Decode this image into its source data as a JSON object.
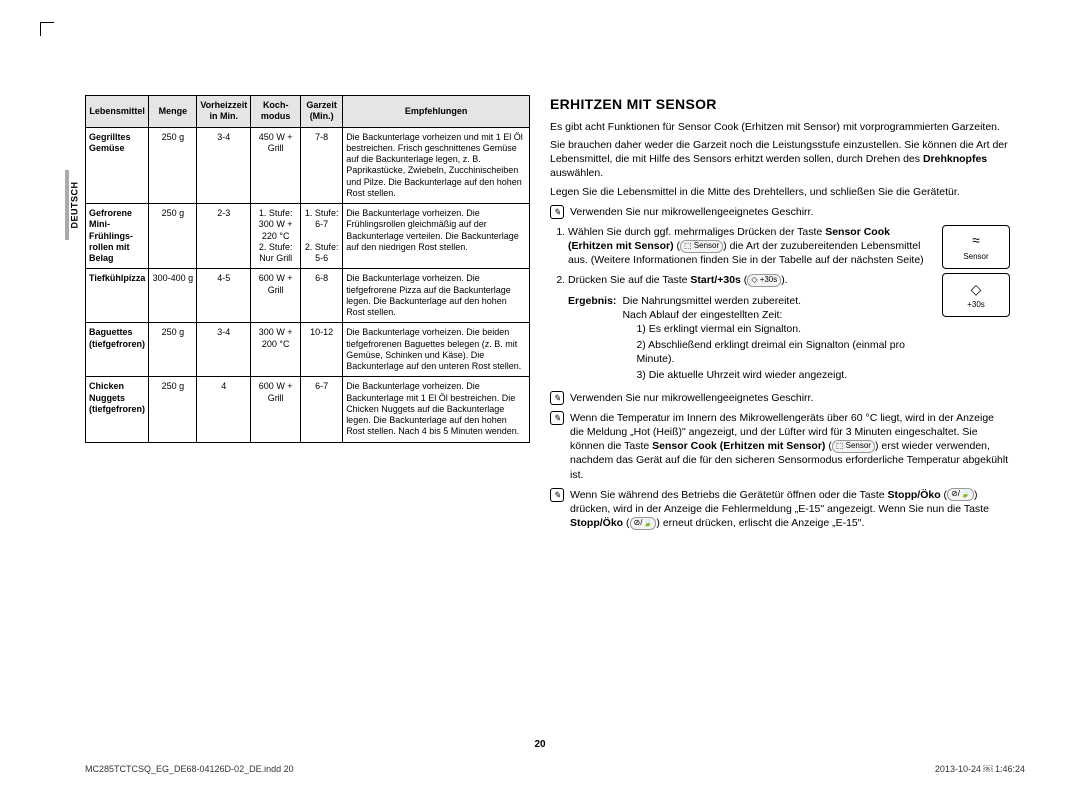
{
  "sideTab": "DEUTSCH",
  "table": {
    "headers": [
      "Lebens­mittel",
      "Menge",
      "Vorheizzeit in Min.",
      "Koch­modus",
      "Garzeit (Min.)",
      "Empfehlungen"
    ],
    "rows": [
      {
        "food": "Gegrilltes Gemüse",
        "qty": "250 g",
        "preheat": "3-4",
        "mode": "450 W + Grill",
        "time": "7-8",
        "rec": "Die Backunterlage vorheizen und mit 1 El Öl bestreichen. Frisch geschnittenes Gemüse auf die Backunterlage legen, z. B. Paprikastücke, Zwiebeln, Zucchinischeiben und Pilze. Die Backunterlage auf den hohen Rost stellen."
      },
      {
        "food": "Gefrorene Mini-Frühlings­rollen mit Belag",
        "qty": "250 g",
        "preheat": "2-3",
        "mode": "1. Stufe: 300 W + 220 °C\n2. Stufe: Nur Grill",
        "time": "1. Stufe: 6-7\n\n2. Stufe: 5-6",
        "rec": "Die Backunterlage vorheizen. Die Frühlingsrollen gleichmäßig auf der Backunterlage verteilen. Die Backunterlage auf den niedrigen Rost stellen."
      },
      {
        "food": "Tiefkühlpizza",
        "qty": "300-400 g",
        "preheat": "4-5",
        "mode": "600 W + Grill",
        "time": "6-8",
        "rec": "Die Backunterlage vorheizen. Die tiefgefrorene Pizza auf die Backunterlage legen. Die Backunterlage auf den hohen Rost stellen."
      },
      {
        "food": "Baguettes (tiefgefroren)",
        "qty": "250 g",
        "preheat": "3-4",
        "mode": "300 W + 200 °C",
        "time": "10-12",
        "rec": "Die Backunterlage vorheizen. Die beiden tiefgefrorenen Baguettes belegen (z. B. mit Gemüse, Schinken und Käse). Die Backunterlage auf den unteren Rost stellen."
      },
      {
        "food": "Chicken Nuggets (tiefgefroren)",
        "qty": "250 g",
        "preheat": "4",
        "mode": "600 W + Grill",
        "time": "6-7",
        "rec": "Die Backunterlage vorheizen. Die Backunterlage mit 1 El Öl bestreichen. Die Chicken Nuggets auf die Backunterlage legen. Die Backunterlage auf den hohen Rost stellen. Nach 4 bis 5 Minuten wenden."
      }
    ]
  },
  "right": {
    "heading": "ERHITZEN MIT SENSOR",
    "intro": [
      "Es gibt acht Funktionen für Sensor Cook (Erhitzen mit Sensor) mit vorprogrammierten Garzeiten.",
      "Sie brauchen daher weder die Garzeit noch die Leistungsstufe einzustellen. Sie können die Art der Lebensmittel, die mit Hilfe des Sensors erhitzt werden sollen, durch Drehen des <b>Drehknopfes</b> auswählen.",
      "Legen Sie die Lebensmittel in die Mitte des Drehtellers, und schließen Sie die Gerätetür."
    ],
    "noteA": "Verwenden Sie nur mikrowellengeeignetes Geschirr.",
    "steps": [
      {
        "text": "Wählen Sie durch ggf. mehrmaliges Drücken der Taste <b>Sensor Cook (Erhitzen mit Sensor)</b> (<span class='inline-sym'>⬚ Sensor</span>) die Art der zuzubereitenden Lebensmittel aus. (Weitere Informationen finden Sie in der Tabelle auf der nächsten Seite)",
        "icon": {
          "sym": "≈",
          "label": "Sensor"
        }
      },
      {
        "text": "Drücken Sie auf die Taste <b>Start/+30s</b> (<span class='inline-sym'>◇ +30s</span>).",
        "icon": {
          "sym": "◇",
          "label": "+30s"
        }
      }
    ],
    "result": {
      "label": "Ergebnis:",
      "lines": [
        "Die Nahrungsmittel werden zubereitet.",
        "Nach Ablauf der eingestellten Zeit:"
      ],
      "sub": [
        "1)  Es erklingt viermal ein Signalton.",
        "2)  Abschließend erklingt dreimal ein Signalton (einmal pro Minute).",
        "3)  Die aktuelle Uhrzeit wird wieder angezeigt."
      ]
    },
    "noteB": "Verwenden Sie nur mikrowellengeeignetes Geschirr.",
    "noteC": "Wenn die Temperatur im Innern des Mikrowellengeräts über 60 °C liegt, wird in der Anzeige die Meldung „Hot (Heiß)\" angezeigt, und der Lüfter wird für 3 Minuten eingeschaltet. Sie können die Taste <b>Sensor Cook (Erhitzen mit Sensor)</b> (<span class='inline-sym'>⬚ Sensor</span>) erst wieder verwenden, nachdem das Gerät auf die für den sicheren Sensormodus erforderliche Temperatur abgekühlt ist.",
    "noteD": "Wenn Sie während des Betriebs die Gerätetür öffnen oder die Taste <b>Stopp/Öko</b> (<span class='inline-sym'>⊘/🍃</span>) drücken, wird in der Anzeige die Fehlermeldung „E-15\" angezeigt. Wenn Sie nun die Taste <b>Stopp/Öko</b> (<span class='inline-sym'>⊘/🍃</span>) erneut drücken, erlischt die Anzeige „E-15\"."
  },
  "pageNum": "20",
  "footer": {
    "left": "MC285TCTCSQ_EG_DE68-04126D-02_DE.indd   20",
    "right": "2013-10-24   ￼ 1:46:24"
  }
}
